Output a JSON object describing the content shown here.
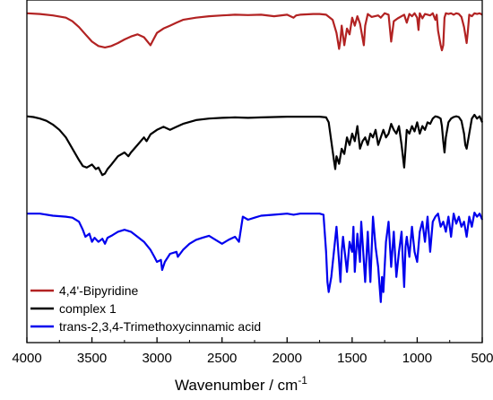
{
  "chart_data": {
    "type": "line",
    "xlabel": "Wavenumber / cm",
    "xlabel_superscript": "-1",
    "xlim": [
      4000,
      500
    ],
    "x_reversed": true,
    "y_axis_visible": false,
    "grid": false,
    "legend_position": "bottom-left",
    "x_ticks": [
      4000,
      3500,
      3000,
      2500,
      2000,
      1500,
      1000,
      500
    ],
    "series": [
      {
        "name": "4,4'-Bipyridine",
        "color": "#b22222",
        "x": [
          4000,
          3900,
          3800,
          3700,
          3650,
          3600,
          3550,
          3500,
          3450,
          3400,
          3350,
          3300,
          3250,
          3200,
          3150,
          3100,
          3050,
          3030,
          3000,
          2950,
          2900,
          2850,
          2800,
          2700,
          2600,
          2500,
          2400,
          2300,
          2200,
          2100,
          2000,
          1950,
          1930,
          1900,
          1800,
          1750,
          1700,
          1650,
          1620,
          1600,
          1590,
          1580,
          1560,
          1540,
          1520,
          1500,
          1480,
          1460,
          1440,
          1410,
          1400,
          1380,
          1350,
          1300,
          1280,
          1250,
          1220,
          1200,
          1180,
          1150,
          1100,
          1080,
          1060,
          1040,
          1020,
          1000,
          990,
          980,
          960,
          940,
          900,
          880,
          860,
          850,
          840,
          820,
          810,
          800,
          790,
          780,
          760,
          740,
          720,
          700,
          680,
          660,
          640,
          620,
          610,
          600,
          580,
          560,
          540,
          520,
          500
        ],
        "y": [
          0.99,
          0.98,
          0.96,
          0.93,
          0.88,
          0.8,
          0.7,
          0.6,
          0.54,
          0.52,
          0.54,
          0.58,
          0.63,
          0.67,
          0.7,
          0.66,
          0.55,
          0.62,
          0.72,
          0.78,
          0.82,
          0.86,
          0.9,
          0.93,
          0.95,
          0.96,
          0.97,
          0.965,
          0.97,
          0.95,
          0.97,
          0.93,
          0.96,
          0.97,
          0.98,
          0.98,
          0.97,
          0.9,
          0.72,
          0.5,
          0.62,
          0.82,
          0.55,
          0.78,
          0.7,
          0.93,
          0.82,
          0.95,
          0.85,
          0.55,
          0.82,
          0.98,
          0.94,
          0.96,
          0.93,
          0.99,
          0.97,
          0.6,
          0.88,
          0.92,
          0.97,
          0.86,
          0.98,
          0.95,
          0.99,
          0.93,
          0.76,
          0.99,
          0.92,
          0.98,
          0.96,
          0.99,
          0.9,
          0.97,
          0.75,
          0.55,
          0.48,
          0.55,
          0.93,
          0.99,
          0.98,
          0.99,
          0.97,
          0.99,
          0.98,
          0.94,
          0.8,
          0.58,
          0.75,
          0.97,
          0.95,
          0.99,
          0.98,
          0.99,
          0.97
        ]
      },
      {
        "name": "complex 1",
        "color": "#000000",
        "x": [
          4000,
          3950,
          3900,
          3850,
          3800,
          3750,
          3700,
          3650,
          3600,
          3570,
          3540,
          3500,
          3470,
          3450,
          3420,
          3400,
          3380,
          3350,
          3300,
          3250,
          3220,
          3200,
          3150,
          3100,
          3080,
          3050,
          3000,
          2950,
          2900,
          2850,
          2800,
          2700,
          2600,
          2500,
          2400,
          2300,
          2200,
          2100,
          2000,
          1900,
          1800,
          1750,
          1700,
          1680,
          1660,
          1640,
          1630,
          1620,
          1600,
          1580,
          1560,
          1540,
          1520,
          1500,
          1480,
          1460,
          1440,
          1420,
          1400,
          1380,
          1360,
          1340,
          1320,
          1300,
          1280,
          1260,
          1240,
          1220,
          1200,
          1180,
          1160,
          1140,
          1120,
          1100,
          1090,
          1080,
          1060,
          1040,
          1020,
          1000,
          980,
          960,
          940,
          920,
          900,
          880,
          860,
          840,
          820,
          810,
          800,
          790,
          780,
          760,
          740,
          720,
          700,
          680,
          660,
          640,
          630,
          620,
          600,
          580,
          560,
          540,
          520,
          500
        ],
        "y": [
          0.98,
          0.97,
          0.95,
          0.92,
          0.87,
          0.8,
          0.7,
          0.55,
          0.4,
          0.32,
          0.3,
          0.34,
          0.28,
          0.3,
          0.2,
          0.22,
          0.28,
          0.34,
          0.45,
          0.5,
          0.45,
          0.5,
          0.6,
          0.7,
          0.65,
          0.74,
          0.8,
          0.84,
          0.8,
          0.84,
          0.88,
          0.93,
          0.95,
          0.96,
          0.965,
          0.96,
          0.965,
          0.97,
          0.975,
          0.975,
          0.975,
          0.975,
          0.965,
          0.9,
          0.65,
          0.4,
          0.28,
          0.45,
          0.35,
          0.55,
          0.48,
          0.7,
          0.6,
          0.75,
          0.65,
          0.85,
          0.55,
          0.65,
          0.7,
          0.6,
          0.75,
          0.7,
          0.8,
          0.6,
          0.7,
          0.8,
          0.7,
          0.75,
          0.88,
          0.8,
          0.75,
          0.85,
          0.6,
          0.3,
          0.55,
          0.8,
          0.75,
          0.85,
          0.78,
          0.9,
          0.75,
          0.85,
          0.8,
          0.9,
          0.88,
          0.95,
          0.98,
          0.97,
          0.95,
          0.85,
          0.65,
          0.5,
          0.7,
          0.9,
          0.95,
          0.97,
          0.98,
          0.97,
          0.92,
          0.75,
          0.6,
          0.55,
          0.75,
          0.95,
          1.0,
          0.95,
          0.98,
          0.9
        ]
      },
      {
        "name": "trans-2,3,4-Trimethoxycinnamic acid",
        "color": "#0000ee",
        "x": [
          4000,
          3900,
          3800,
          3700,
          3650,
          3600,
          3570,
          3550,
          3520,
          3500,
          3480,
          3450,
          3420,
          3400,
          3380,
          3350,
          3300,
          3250,
          3200,
          3150,
          3100,
          3050,
          3020,
          3000,
          2970,
          2960,
          2940,
          2900,
          2850,
          2840,
          2800,
          2750,
          2700,
          2650,
          2600,
          2550,
          2500,
          2450,
          2400,
          2370,
          2340,
          2300,
          2250,
          2200,
          2100,
          2000,
          1950,
          1900,
          1800,
          1750,
          1720,
          1700,
          1690,
          1680,
          1660,
          1640,
          1620,
          1600,
          1590,
          1580,
          1570,
          1540,
          1520,
          1500,
          1490,
          1480,
          1460,
          1440,
          1430,
          1420,
          1400,
          1380,
          1360,
          1340,
          1320,
          1300,
          1280,
          1270,
          1260,
          1240,
          1220,
          1200,
          1180,
          1160,
          1140,
          1120,
          1110,
          1100,
          1090,
          1080,
          1060,
          1040,
          1020,
          1000,
          980,
          960,
          940,
          920,
          900,
          880,
          860,
          840,
          820,
          800,
          780,
          760,
          740,
          720,
          700,
          680,
          660,
          640,
          620,
          600,
          580,
          560,
          540,
          520,
          500
        ],
        "y": [
          0.98,
          0.98,
          0.96,
          0.95,
          0.94,
          0.9,
          0.82,
          0.75,
          0.78,
          0.7,
          0.74,
          0.7,
          0.73,
          0.68,
          0.74,
          0.76,
          0.8,
          0.82,
          0.8,
          0.75,
          0.7,
          0.62,
          0.55,
          0.5,
          0.52,
          0.42,
          0.5,
          0.58,
          0.6,
          0.55,
          0.62,
          0.68,
          0.72,
          0.74,
          0.76,
          0.72,
          0.68,
          0.72,
          0.75,
          0.7,
          0.95,
          0.92,
          0.94,
          0.96,
          0.97,
          0.98,
          0.97,
          0.98,
          0.98,
          0.98,
          0.97,
          0.6,
          0.3,
          0.2,
          0.35,
          0.6,
          0.85,
          0.5,
          0.3,
          0.6,
          0.75,
          0.4,
          0.7,
          0.6,
          0.85,
          0.4,
          0.78,
          0.5,
          0.9,
          0.7,
          0.3,
          0.8,
          0.3,
          0.95,
          0.65,
          0.45,
          0.1,
          0.35,
          0.2,
          0.7,
          0.9,
          0.45,
          0.8,
          0.35,
          0.6,
          0.8,
          0.5,
          0.25,
          0.65,
          0.75,
          0.55,
          0.85,
          0.6,
          0.5,
          0.8,
          0.9,
          0.7,
          0.95,
          0.6,
          0.9,
          0.95,
          0.98,
          0.85,
          0.9,
          0.8,
          0.95,
          0.75,
          0.98,
          0.88,
          0.95,
          0.85,
          0.9,
          0.75,
          0.95,
          0.85,
          0.99,
          0.95,
          0.98,
          0.92
        ]
      }
    ]
  }
}
